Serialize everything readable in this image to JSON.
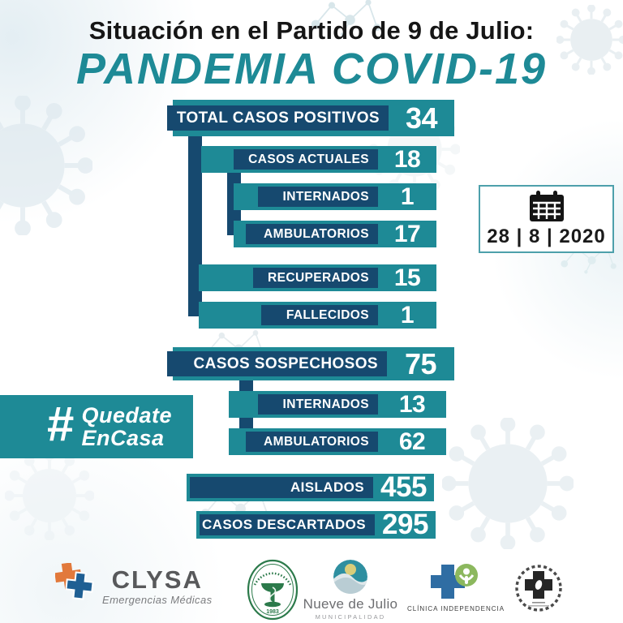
{
  "title": "Situación en el Partido de 9 de Julio:",
  "subtitle": "PANDEMIA COVID-19",
  "date_badge": {
    "date": "28 | 8 | 2020",
    "icon": "calendar-icon"
  },
  "hashtag": {
    "hash": "#",
    "line1": "Quedate",
    "line2": "EnCasa"
  },
  "colors": {
    "teal": "#1E8A96",
    "navy": "#16496F",
    "badge_border": "#4DA0AB"
  },
  "chart_data": {
    "type": "bar",
    "title": "Situación en el Partido de 9 de Julio: PANDEMIA COVID-19",
    "date_shown": "28 | 8 | 2020",
    "rows": [
      {
        "label": "TOTAL CASOS POSITIVOS",
        "value": 34,
        "level": 0
      },
      {
        "label": "CASOS ACTUALES",
        "value": 18,
        "level": 1
      },
      {
        "label": "INTERNADOS",
        "value": 1,
        "level": 2
      },
      {
        "label": "AMBULATORIOS",
        "value": 17,
        "level": 2
      },
      {
        "label": "RECUPERADOS",
        "value": 15,
        "level": 1
      },
      {
        "label": "FALLECIDOS",
        "value": 1,
        "level": 1
      },
      {
        "label": "CASOS SOSPECHOSOS",
        "value": 75,
        "level": 0
      },
      {
        "label": "INTERNADOS",
        "value": 13,
        "level": 1
      },
      {
        "label": "AMBULATORIOS",
        "value": 62,
        "level": 1
      },
      {
        "label": "AISLADOS",
        "value": 455,
        "level": 0
      },
      {
        "label": "CASOS DESCARTADOS",
        "value": 295,
        "level": 0
      }
    ],
    "legend": "none",
    "orientation": "horizontal"
  },
  "footer": {
    "clysa": {
      "name": "CLYSA",
      "tagline": "Emergencias Médicas"
    },
    "circulo_medico_stamp": {
      "year": "1983"
    },
    "municipality": {
      "name": "Nueve de Julio",
      "subtitle": "MUNICIPALIDAD"
    },
    "clinica_independencia": {
      "name": "CLÍNICA INDEPENDENCIA"
    }
  }
}
